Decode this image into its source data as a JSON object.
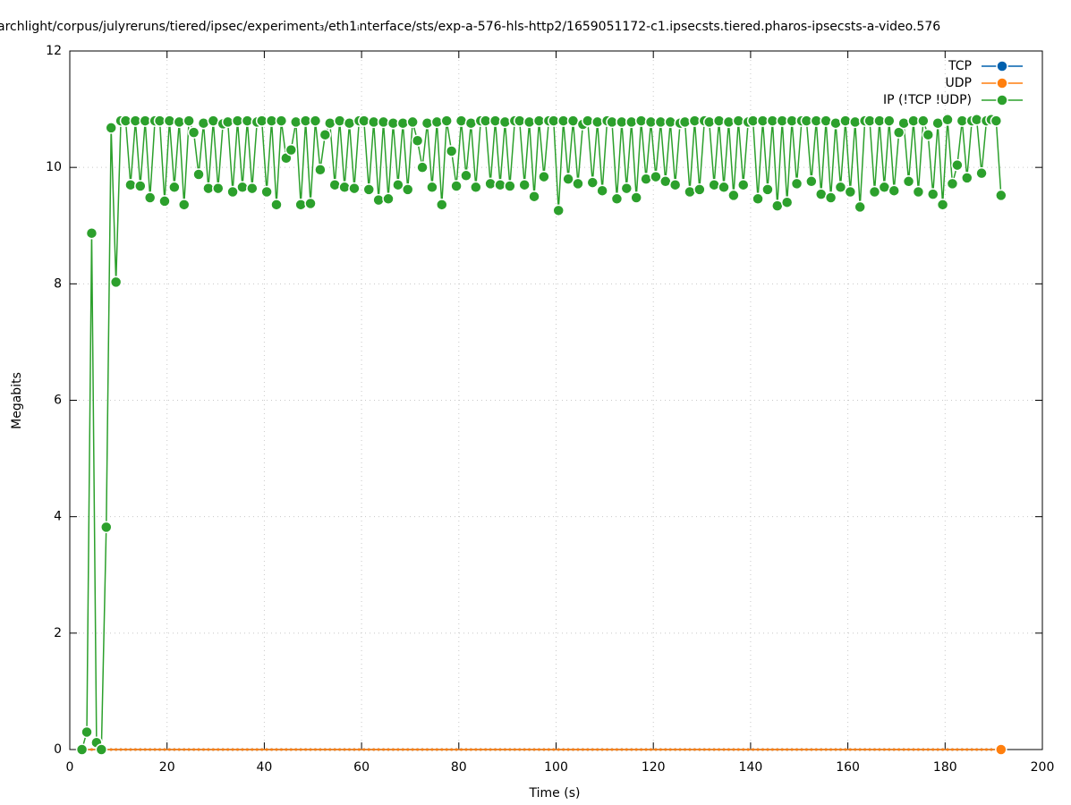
{
  "chart_data": {
    "type": "line",
    "title": "archlight/corpus/julyreruns/tiered/ipsec/experiment₃/eth1ᵢnterface/sts/exp-a-576-hls-http2/1659051172-c1.ipsecsts.tiered.pharos-ipsecsts-a-video.576",
    "xlabel": "Time (s)",
    "ylabel": "Megabits",
    "xlim": [
      0,
      200
    ],
    "xticks": [
      0,
      20,
      40,
      60,
      80,
      100,
      120,
      140,
      160,
      180,
      200
    ],
    "ylim": [
      0,
      12
    ],
    "yticks": [
      0,
      2,
      4,
      6,
      8,
      10,
      12
    ],
    "grid": true,
    "legend": "top-right",
    "x": [
      2.5,
      3.5,
      4.5,
      5.5,
      6.5,
      7.5,
      8.5,
      9.5,
      10.5,
      11.5,
      12.5,
      13.5,
      14.5,
      15.5,
      16.5,
      17.5,
      18.5,
      19.5,
      20.5,
      21.5,
      22.5,
      23.5,
      24.5,
      25.5,
      26.5,
      27.5,
      28.5,
      29.5,
      30.5,
      31.5,
      32.5,
      33.5,
      34.5,
      35.5,
      36.5,
      37.5,
      38.5,
      39.5,
      40.5,
      41.5,
      42.5,
      43.5,
      44.5,
      45.5,
      46.5,
      47.5,
      48.5,
      49.5,
      50.5,
      51.5,
      52.5,
      53.5,
      54.5,
      55.5,
      56.5,
      57.5,
      58.5,
      59.5,
      60.5,
      61.5,
      62.5,
      63.5,
      64.5,
      65.5,
      66.5,
      67.5,
      68.5,
      69.5,
      70.5,
      71.5,
      72.5,
      73.5,
      74.5,
      75.5,
      76.5,
      77.5,
      78.5,
      79.5,
      80.5,
      81.5,
      82.5,
      83.5,
      84.5,
      85.5,
      86.5,
      87.5,
      88.5,
      89.5,
      90.5,
      91.5,
      92.5,
      93.5,
      94.5,
      95.5,
      96.5,
      97.5,
      98.5,
      99.5,
      100.5,
      101.5,
      102.5,
      103.5,
      104.5,
      105.5,
      106.5,
      107.5,
      108.5,
      109.5,
      110.5,
      111.5,
      112.5,
      113.5,
      114.5,
      115.5,
      116.5,
      117.5,
      118.5,
      119.5,
      120.5,
      121.5,
      122.5,
      123.5,
      124.5,
      125.5,
      126.5,
      127.5,
      128.5,
      129.5,
      130.5,
      131.5,
      132.5,
      133.5,
      134.5,
      135.5,
      136.5,
      137.5,
      138.5,
      139.5,
      140.5,
      141.5,
      142.5,
      143.5,
      144.5,
      145.5,
      146.5,
      147.5,
      148.5,
      149.5,
      150.5,
      151.5,
      152.5,
      153.5,
      154.5,
      155.5,
      156.5,
      157.5,
      158.5,
      159.5,
      160.5,
      161.5,
      162.5,
      163.5,
      164.5,
      165.5,
      166.5,
      167.5,
      168.5,
      169.5,
      170.5,
      171.5,
      172.5,
      173.5,
      174.5,
      175.5,
      176.5,
      177.5,
      178.5,
      179.5,
      180.5,
      181.5,
      182.5,
      183.5,
      184.5,
      185.5,
      186.5,
      187.5,
      188.5,
      189.5,
      190.5,
      191.5
    ],
    "series": [
      {
        "name": "TCP",
        "color": "#0060ad",
        "values": [
          0,
          0,
          0,
          0,
          0,
          0,
          0,
          0,
          0,
          0,
          0,
          0,
          0,
          0,
          0,
          0,
          0,
          0,
          0,
          0,
          0,
          0,
          0,
          0,
          0,
          0,
          0,
          0,
          0,
          0,
          0,
          0,
          0,
          0,
          0,
          0,
          0,
          0,
          0,
          0,
          0,
          0,
          0,
          0,
          0,
          0,
          0,
          0,
          0,
          0,
          0,
          0,
          0,
          0,
          0,
          0,
          0,
          0,
          0,
          0,
          0,
          0,
          0,
          0,
          0,
          0,
          0,
          0,
          0,
          0,
          0,
          0,
          0,
          0,
          0,
          0,
          0,
          0,
          0,
          0,
          0,
          0,
          0,
          0,
          0,
          0,
          0,
          0,
          0,
          0,
          0,
          0,
          0,
          0,
          0,
          0,
          0,
          0,
          0,
          0,
          0,
          0,
          0,
          0,
          0,
          0,
          0,
          0,
          0,
          0,
          0,
          0,
          0,
          0,
          0,
          0,
          0,
          0,
          0,
          0,
          0,
          0,
          0,
          0,
          0,
          0,
          0,
          0,
          0,
          0,
          0,
          0,
          0,
          0,
          0,
          0,
          0,
          0,
          0,
          0,
          0,
          0,
          0,
          0,
          0,
          0,
          0,
          0,
          0,
          0,
          0,
          0,
          0,
          0,
          0,
          0,
          0,
          0,
          0,
          0,
          0,
          0,
          0,
          0,
          0,
          0,
          0,
          0,
          0,
          0,
          0,
          0,
          0,
          0,
          0,
          0,
          0,
          0,
          0,
          0,
          0,
          0,
          0,
          0,
          0,
          0,
          0,
          0,
          0,
          0
        ]
      },
      {
        "name": "UDP",
        "color": "#ff7f0e",
        "values": [
          0,
          0,
          0,
          0,
          0,
          0,
          0,
          0,
          0,
          0,
          0,
          0,
          0,
          0,
          0,
          0,
          0,
          0,
          0,
          0,
          0,
          0,
          0,
          0,
          0,
          0,
          0,
          0,
          0,
          0,
          0,
          0,
          0,
          0,
          0,
          0,
          0,
          0,
          0,
          0,
          0,
          0,
          0,
          0,
          0,
          0,
          0,
          0,
          0,
          0,
          0,
          0,
          0,
          0,
          0,
          0,
          0,
          0,
          0,
          0,
          0,
          0,
          0,
          0,
          0,
          0,
          0,
          0,
          0,
          0,
          0,
          0,
          0,
          0,
          0,
          0,
          0,
          0,
          0,
          0,
          0,
          0,
          0,
          0,
          0,
          0,
          0,
          0,
          0,
          0,
          0,
          0,
          0,
          0,
          0,
          0,
          0,
          0,
          0,
          0,
          0,
          0,
          0,
          0,
          0,
          0,
          0,
          0,
          0,
          0,
          0,
          0,
          0,
          0,
          0,
          0,
          0,
          0,
          0,
          0,
          0,
          0,
          0,
          0,
          0,
          0,
          0,
          0,
          0,
          0,
          0,
          0,
          0,
          0,
          0,
          0,
          0,
          0,
          0,
          0,
          0,
          0,
          0,
          0,
          0,
          0,
          0,
          0,
          0,
          0,
          0,
          0,
          0,
          0,
          0,
          0,
          0,
          0,
          0,
          0,
          0,
          0,
          0,
          0,
          0,
          0,
          0,
          0,
          0,
          0,
          0,
          0,
          0,
          0,
          0,
          0,
          0,
          0,
          0,
          0,
          0,
          0,
          0,
          0,
          0,
          0,
          0,
          0,
          0,
          0
        ]
      },
      {
        "name": "IP (!TCP  !UDP)",
        "color": "#2ca02c",
        "values": [
          0,
          0.3,
          8.87,
          0.12,
          0,
          3.82,
          10.68,
          8.03,
          10.8,
          10.8,
          9.7,
          10.8,
          9.68,
          10.8,
          9.48,
          10.8,
          10.8,
          9.42,
          10.8,
          9.66,
          10.78,
          9.36,
          10.8,
          10.6,
          9.88,
          10.76,
          9.64,
          10.8,
          9.64,
          10.75,
          10.78,
          9.58,
          10.8,
          9.66,
          10.8,
          9.64,
          10.78,
          10.8,
          9.58,
          10.8,
          9.36,
          10.8,
          10.16,
          10.3,
          10.78,
          9.36,
          10.8,
          9.38,
          10.8,
          9.96,
          10.56,
          10.76,
          9.7,
          10.8,
          9.66,
          10.76,
          9.64,
          10.8,
          10.8,
          9.62,
          10.78,
          9.44,
          10.78,
          9.46,
          10.76,
          9.7,
          10.76,
          9.62,
          10.78,
          10.46,
          10.0,
          10.76,
          9.66,
          10.78,
          9.36,
          10.8,
          10.28,
          9.68,
          10.8,
          9.86,
          10.76,
          9.66,
          10.8,
          10.8,
          9.72,
          10.8,
          9.7,
          10.78,
          9.68,
          10.8,
          10.8,
          9.7,
          10.78,
          9.5,
          10.8,
          9.84,
          10.8,
          10.8,
          9.26,
          10.8,
          9.8,
          10.8,
          9.72,
          10.74,
          10.8,
          9.74,
          10.78,
          9.6,
          10.8,
          10.78,
          9.46,
          10.78,
          9.64,
          10.78,
          9.48,
          10.8,
          9.8,
          10.78,
          9.84,
          10.78,
          9.76,
          10.78,
          9.7,
          10.76,
          10.78,
          9.58,
          10.8,
          9.62,
          10.8,
          10.78,
          9.7,
          10.8,
          9.66,
          10.78,
          9.52,
          10.8,
          9.7,
          10.78,
          10.8,
          9.46,
          10.8,
          9.62,
          10.8,
          9.34,
          10.8,
          9.4,
          10.8,
          9.72,
          10.8,
          10.8,
          9.76,
          10.8,
          9.54,
          10.8,
          9.48,
          10.76,
          9.66,
          10.8,
          9.58,
          10.78,
          9.32,
          10.8,
          10.8,
          9.58,
          10.8,
          9.66,
          10.8,
          9.6,
          10.6,
          10.76,
          9.76,
          10.8,
          9.58,
          10.8,
          10.56,
          9.54,
          10.76,
          9.36,
          10.82,
          9.72,
          10.04,
          10.8,
          9.82,
          10.8,
          10.82,
          9.9,
          10.8,
          10.82,
          10.8,
          9.52
        ]
      }
    ]
  }
}
